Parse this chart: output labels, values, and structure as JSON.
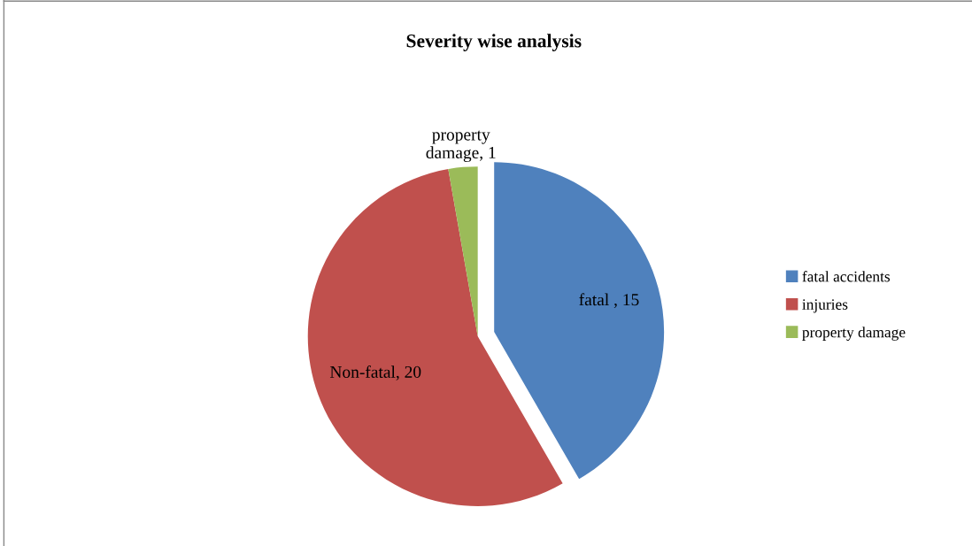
{
  "chart_data": {
    "type": "pie",
    "title": "Severity wise analysis",
    "categories": [
      "fatal accidents",
      "injuries",
      "property damage"
    ],
    "values": [
      15,
      20,
      1
    ],
    "colors": [
      "#4f81bd",
      "#c0504d",
      "#9bbb59"
    ],
    "value_labels": [
      "fatal , 15",
      "Non-fatal, 20",
      "property\ndamage, 1"
    ],
    "legend": "right"
  }
}
